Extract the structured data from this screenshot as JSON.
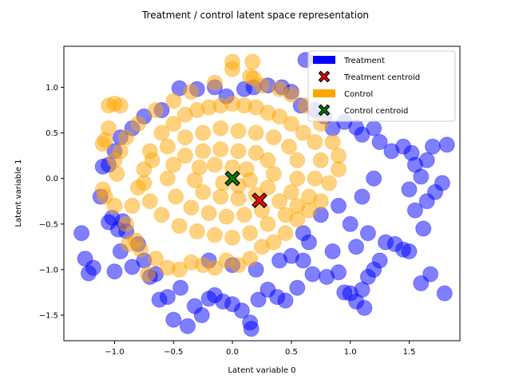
{
  "chart_data": {
    "type": "scatter",
    "title": "Treatment / control latent space representation",
    "xlabel": "Latent variable 0",
    "ylabel": "Latent variable 1",
    "xlim": [
      -1.43,
      1.93
    ],
    "ylim": [
      -1.78,
      1.45
    ],
    "xticks": [
      -1.0,
      -0.5,
      0.0,
      0.5,
      1.0,
      1.5
    ],
    "xtick_labels": [
      "−1.0",
      "−0.5",
      "0.0",
      "0.5",
      "1.0",
      "1.5"
    ],
    "yticks": [
      -1.5,
      -1.0,
      -0.5,
      0.0,
      0.5,
      1.0
    ],
    "ytick_labels": [
      "−1.5",
      "−1.0",
      "−0.5",
      "0.0",
      "0.5",
      "1.0"
    ],
    "grid": false,
    "legend_position": "upper right",
    "series": [
      {
        "name": "Treatment",
        "color": "#0000ff",
        "alpha": 0.5,
        "points": [
          [
            -1.28,
            -0.6
          ],
          [
            -1.25,
            -0.88
          ],
          [
            -1.22,
            -1.04
          ],
          [
            -1.18,
            -0.98
          ],
          [
            -1.12,
            -0.2
          ],
          [
            -1.1,
            0.13
          ],
          [
            -1.05,
            -0.48
          ],
          [
            -1.02,
            -0.43
          ],
          [
            -1.0,
            -1.02
          ],
          [
            -0.97,
            -0.56
          ],
          [
            -0.95,
            -0.8
          ],
          [
            -0.93,
            -0.47
          ],
          [
            -0.9,
            -0.58
          ],
          [
            -0.85,
            -0.97
          ],
          [
            -0.8,
            -0.72
          ],
          [
            -0.75,
            -0.9
          ],
          [
            -0.7,
            -1.08
          ],
          [
            -0.65,
            -1.05
          ],
          [
            -0.62,
            -1.33
          ],
          [
            -0.55,
            -1.3
          ],
          [
            -0.5,
            -1.55
          ],
          [
            -0.44,
            -1.2
          ],
          [
            -0.38,
            -1.62
          ],
          [
            -0.32,
            -1.4
          ],
          [
            -0.26,
            -1.5
          ],
          [
            -0.2,
            -1.32
          ],
          [
            -0.15,
            -1.28
          ],
          [
            -0.08,
            -1.35
          ],
          [
            0.0,
            -1.38
          ],
          [
            0.08,
            -1.45
          ],
          [
            0.15,
            -1.58
          ],
          [
            0.16,
            -1.65
          ],
          [
            0.22,
            -1.33
          ],
          [
            0.3,
            -1.22
          ],
          [
            0.38,
            -1.3
          ],
          [
            0.45,
            -1.34
          ],
          [
            0.55,
            -1.2
          ],
          [
            0.6,
            -0.9
          ],
          [
            0.68,
            -1.05
          ],
          [
            0.8,
            -1.08
          ],
          [
            0.9,
            -1.03
          ],
          [
            1.0,
            -1.26
          ],
          [
            0.95,
            -1.25
          ],
          [
            1.05,
            -1.35
          ],
          [
            1.1,
            -1.22
          ],
          [
            1.12,
            -1.42
          ],
          [
            1.15,
            -1.08
          ],
          [
            1.2,
            -1.0
          ],
          [
            1.25,
            -0.9
          ],
          [
            1.3,
            -0.7
          ],
          [
            1.38,
            -0.72
          ],
          [
            1.45,
            -0.78
          ],
          [
            1.5,
            -0.8
          ],
          [
            1.6,
            -1.15
          ],
          [
            1.68,
            -1.05
          ],
          [
            1.8,
            -1.26
          ],
          [
            1.62,
            -0.55
          ],
          [
            1.55,
            -0.35
          ],
          [
            1.65,
            -0.25
          ],
          [
            1.5,
            -0.12
          ],
          [
            1.6,
            0.02
          ],
          [
            1.72,
            -0.15
          ],
          [
            1.78,
            -0.05
          ],
          [
            1.55,
            0.15
          ],
          [
            1.65,
            0.2
          ],
          [
            1.82,
            0.37
          ],
          [
            1.7,
            0.35
          ],
          [
            1.52,
            0.28
          ],
          [
            1.45,
            0.35
          ],
          [
            1.35,
            0.3
          ],
          [
            1.25,
            0.4
          ],
          [
            1.2,
            0.55
          ],
          [
            1.1,
            0.48
          ],
          [
            1.05,
            0.56
          ],
          [
            0.95,
            0.62
          ],
          [
            0.85,
            0.55
          ],
          [
            0.78,
            0.68
          ],
          [
            0.7,
            0.75
          ],
          [
            0.62,
            1.3
          ],
          [
            0.58,
            0.8
          ],
          [
            0.5,
            0.95
          ],
          [
            0.42,
            1.0
          ],
          [
            0.3,
            1.02
          ],
          [
            0.18,
            1.0
          ],
          [
            0.1,
            0.98
          ],
          [
            -0.05,
            0.9
          ],
          [
            -0.15,
            1.0
          ],
          [
            -0.3,
            0.98
          ],
          [
            -0.45,
            0.99
          ],
          [
            -0.6,
            0.75
          ],
          [
            -0.75,
            0.68
          ],
          [
            -0.85,
            0.55
          ],
          [
            -0.95,
            0.45
          ],
          [
            -1.0,
            0.3
          ],
          [
            -1.05,
            0.15
          ],
          [
            -0.2,
            -0.9
          ],
          [
            0.0,
            -0.95
          ],
          [
            0.2,
            -1.0
          ],
          [
            0.4,
            -0.9
          ],
          [
            0.6,
            -0.6
          ],
          [
            0.75,
            -0.4
          ],
          [
            0.9,
            -0.3
          ],
          [
            1.0,
            -0.5
          ],
          [
            1.1,
            -0.2
          ],
          [
            1.2,
            0.0
          ],
          [
            1.15,
            -0.6
          ],
          [
            1.05,
            -0.75
          ],
          [
            0.85,
            -0.8
          ],
          [
            0.65,
            -0.7
          ],
          [
            0.5,
            -0.85
          ]
        ]
      },
      {
        "name": "Control",
        "color": "#ffa500",
        "alpha": 0.5,
        "points": [
          [
            -1.05,
            0.8
          ],
          [
            -1.0,
            0.82
          ],
          [
            -0.95,
            0.8
          ],
          [
            -1.08,
            0.42
          ],
          [
            -1.1,
            0.38
          ],
          [
            -1.05,
            0.55
          ],
          [
            -1.0,
            0.2
          ],
          [
            -1.1,
            -0.12
          ],
          [
            -1.08,
            -0.2
          ],
          [
            -1.0,
            -0.3
          ],
          [
            -0.9,
            -0.5
          ],
          [
            -0.88,
            -0.72
          ],
          [
            -0.82,
            -0.68
          ],
          [
            -0.78,
            -0.78
          ],
          [
            -0.72,
            -1.05
          ],
          [
            -0.65,
            -0.88
          ],
          [
            -0.55,
            -0.98
          ],
          [
            -0.45,
            -1.0
          ],
          [
            -0.35,
            -0.92
          ],
          [
            -0.25,
            -0.95
          ],
          [
            -0.15,
            -0.98
          ],
          [
            -0.05,
            -0.9
          ],
          [
            0.05,
            -0.95
          ],
          [
            0.15,
            -0.88
          ],
          [
            0.25,
            -0.75
          ],
          [
            0.35,
            -0.7
          ],
          [
            0.45,
            -0.6
          ],
          [
            0.55,
            -0.45
          ],
          [
            0.65,
            -0.35
          ],
          [
            0.75,
            -0.25
          ],
          [
            0.82,
            -0.05
          ],
          [
            0.9,
            0.1
          ],
          [
            0.9,
            0.25
          ],
          [
            0.85,
            0.4
          ],
          [
            0.75,
            0.6
          ],
          [
            0.62,
            0.8
          ],
          [
            0.5,
            0.92
          ],
          [
            0.4,
            0.98
          ],
          [
            0.25,
            1.02
          ],
          [
            0.15,
            1.12
          ],
          [
            0.0,
            1.2
          ],
          [
            0.0,
            1.28
          ],
          [
            0.17,
            1.28
          ],
          [
            0.18,
            1.1
          ],
          [
            -0.15,
            1.05
          ],
          [
            -0.35,
            0.95
          ],
          [
            -0.5,
            0.85
          ],
          [
            -0.65,
            0.75
          ],
          [
            -0.8,
            0.6
          ],
          [
            -0.9,
            0.45
          ],
          [
            -0.95,
            0.3
          ],
          [
            -0.98,
            0.05
          ],
          [
            -0.85,
            -0.3
          ],
          [
            -0.8,
            -0.1
          ],
          [
            -0.75,
            0.1
          ],
          [
            -0.7,
            0.3
          ],
          [
            -0.6,
            0.5
          ],
          [
            -0.5,
            0.6
          ],
          [
            -0.4,
            0.7
          ],
          [
            -0.3,
            0.75
          ],
          [
            -0.2,
            0.78
          ],
          [
            -0.1,
            0.8
          ],
          [
            0.0,
            0.82
          ],
          [
            0.1,
            0.8
          ],
          [
            0.2,
            0.78
          ],
          [
            0.3,
            0.72
          ],
          [
            0.4,
            0.68
          ],
          [
            0.5,
            0.6
          ],
          [
            0.6,
            0.5
          ],
          [
            0.7,
            0.4
          ],
          [
            0.75,
            0.2
          ],
          [
            0.7,
            0.0
          ],
          [
            0.65,
            -0.2
          ],
          [
            0.55,
            -0.3
          ],
          [
            0.45,
            -0.4
          ],
          [
            0.3,
            -0.5
          ],
          [
            0.15,
            -0.6
          ],
          [
            0.0,
            -0.65
          ],
          [
            -0.15,
            -0.62
          ],
          [
            -0.3,
            -0.58
          ],
          [
            -0.45,
            -0.52
          ],
          [
            -0.6,
            -0.4
          ],
          [
            -0.7,
            -0.25
          ],
          [
            -0.75,
            -0.05
          ],
          [
            -0.68,
            0.2
          ],
          [
            -0.55,
            0.35
          ],
          [
            -0.4,
            0.45
          ],
          [
            -0.25,
            0.5
          ],
          [
            -0.1,
            0.55
          ],
          [
            0.05,
            0.52
          ],
          [
            0.2,
            0.5
          ],
          [
            0.35,
            0.45
          ],
          [
            0.48,
            0.35
          ],
          [
            0.55,
            0.2
          ],
          [
            0.55,
            0.0
          ],
          [
            0.5,
            -0.15
          ],
          [
            0.4,
            -0.25
          ],
          [
            0.25,
            -0.35
          ],
          [
            0.1,
            -0.4
          ],
          [
            -0.05,
            -0.42
          ],
          [
            -0.2,
            -0.38
          ],
          [
            -0.35,
            -0.32
          ],
          [
            -0.48,
            -0.2
          ],
          [
            -0.55,
            0.0
          ],
          [
            -0.5,
            0.15
          ],
          [
            -0.4,
            0.25
          ],
          [
            -0.25,
            0.3
          ],
          [
            -0.1,
            0.32
          ],
          [
            0.05,
            0.3
          ],
          [
            0.2,
            0.28
          ],
          [
            0.3,
            0.2
          ],
          [
            0.35,
            0.05
          ],
          [
            0.3,
            -0.1
          ],
          [
            0.2,
            -0.18
          ],
          [
            0.05,
            -0.22
          ],
          [
            -0.1,
            -0.2
          ],
          [
            -0.25,
            -0.15
          ],
          [
            -0.32,
            -0.02
          ],
          [
            -0.28,
            0.12
          ],
          [
            -0.15,
            0.15
          ],
          [
            0.0,
            0.12
          ],
          [
            0.12,
            0.1
          ],
          [
            0.15,
            -0.02
          ],
          [
            0.05,
            -0.08
          ],
          [
            -0.08,
            -0.05
          ]
        ]
      }
    ],
    "centroids": [
      {
        "name": "Treatment centroid",
        "color": "#ff0000",
        "x": 0.23,
        "y": -0.24
      },
      {
        "name": "Control centroid",
        "color": "#008000",
        "x": 0.0,
        "y": 0.0
      }
    ],
    "legend": [
      {
        "label": "Treatment",
        "kind": "patch",
        "color": "#0000ff"
      },
      {
        "label": "Treatment centroid",
        "kind": "marker",
        "color": "#ff0000"
      },
      {
        "label": "Control",
        "kind": "patch",
        "color": "#ffa500"
      },
      {
        "label": "Control centroid",
        "kind": "marker",
        "color": "#008000"
      }
    ]
  }
}
